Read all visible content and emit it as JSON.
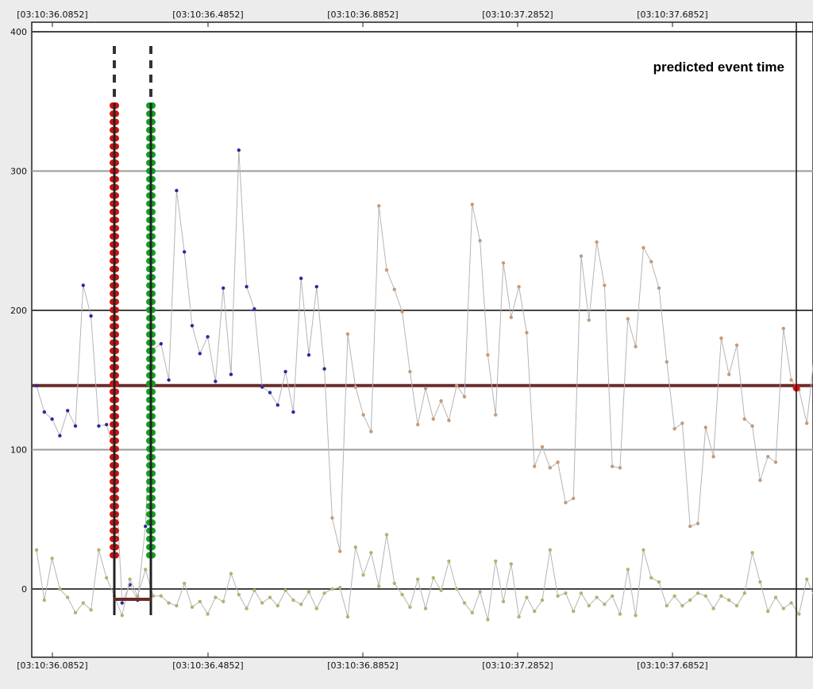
{
  "chart_data": {
    "type": "line",
    "title": "",
    "xlabel": "",
    "ylabel": "",
    "x_tick_labels": [
      "[03:10:36.0852]",
      "[03:10:36.4852]",
      "[03:10:36.8852]",
      "[03:10:37.2852]",
      "[03:10:37.6852]"
    ],
    "y_ticks": [
      0,
      100,
      200,
      300,
      400
    ],
    "ylim": [
      -50,
      405
    ],
    "grid": true,
    "annotation": "predicted event time",
    "threshold_level": 146,
    "colors": {
      "main_line": "#b5b5b5",
      "early_points": "#2b2ba0",
      "late_points": "#c49a7a",
      "baseline_points": "#b8b070",
      "threshold": "#6b2b2b",
      "marker_red": "#d01010",
      "marker_green": "#10a020",
      "marker_dash": "#333333",
      "predicted_point": "#e01010"
    },
    "series": [
      {
        "values": [
          146,
          127,
          122,
          110,
          128,
          117,
          218,
          196,
          117,
          118,
          99,
          -10,
          3,
          -8,
          45,
          172,
          176,
          150,
          286,
          242,
          189,
          169,
          181,
          149,
          216,
          154,
          315,
          217,
          201,
          145,
          141,
          132,
          156,
          127,
          223,
          168,
          217,
          158,
          51,
          27,
          183,
          145,
          125,
          113,
          275,
          229,
          215,
          199,
          156,
          118,
          144,
          122,
          135,
          121,
          146,
          138,
          276,
          250,
          168,
          125,
          234,
          195,
          217,
          184,
          88,
          102,
          87,
          91,
          62,
          65,
          239,
          193,
          249,
          218,
          88,
          87,
          194,
          174,
          245,
          235,
          216,
          163,
          115,
          119,
          45,
          47,
          116,
          95,
          180,
          154,
          175,
          122,
          117,
          78,
          95,
          91,
          187,
          150,
          143,
          119,
          170
        ]
      },
      {
        "values": [
          28,
          -8,
          22,
          0,
          -6,
          -17,
          -10,
          -15,
          28,
          8,
          -5,
          -19,
          7,
          -5,
          14,
          -5,
          -5,
          -10,
          -12,
          4,
          -13,
          -9,
          -18,
          -6,
          -9,
          11,
          -4,
          -14,
          -1,
          -10,
          -6,
          -12,
          -1,
          -8,
          -11,
          -2,
          -14,
          -3,
          0,
          1,
          -20,
          30,
          10,
          26,
          2,
          39,
          4,
          -4,
          -13,
          7,
          -14,
          8,
          -1,
          20,
          0,
          -10,
          -17,
          -2,
          -22,
          20,
          -9,
          18,
          -20,
          -6,
          -16,
          -8,
          28,
          -5,
          -3,
          -16,
          -3,
          -12,
          -6,
          -11,
          -5,
          -18,
          14,
          -19,
          28,
          8,
          5,
          -12,
          -5,
          -12,
          -8,
          -3,
          -5,
          -14,
          -5,
          -8,
          -12,
          -3,
          26,
          5,
          -16,
          -6,
          -14,
          -10,
          -18,
          7,
          -6
        ]
      }
    ]
  }
}
